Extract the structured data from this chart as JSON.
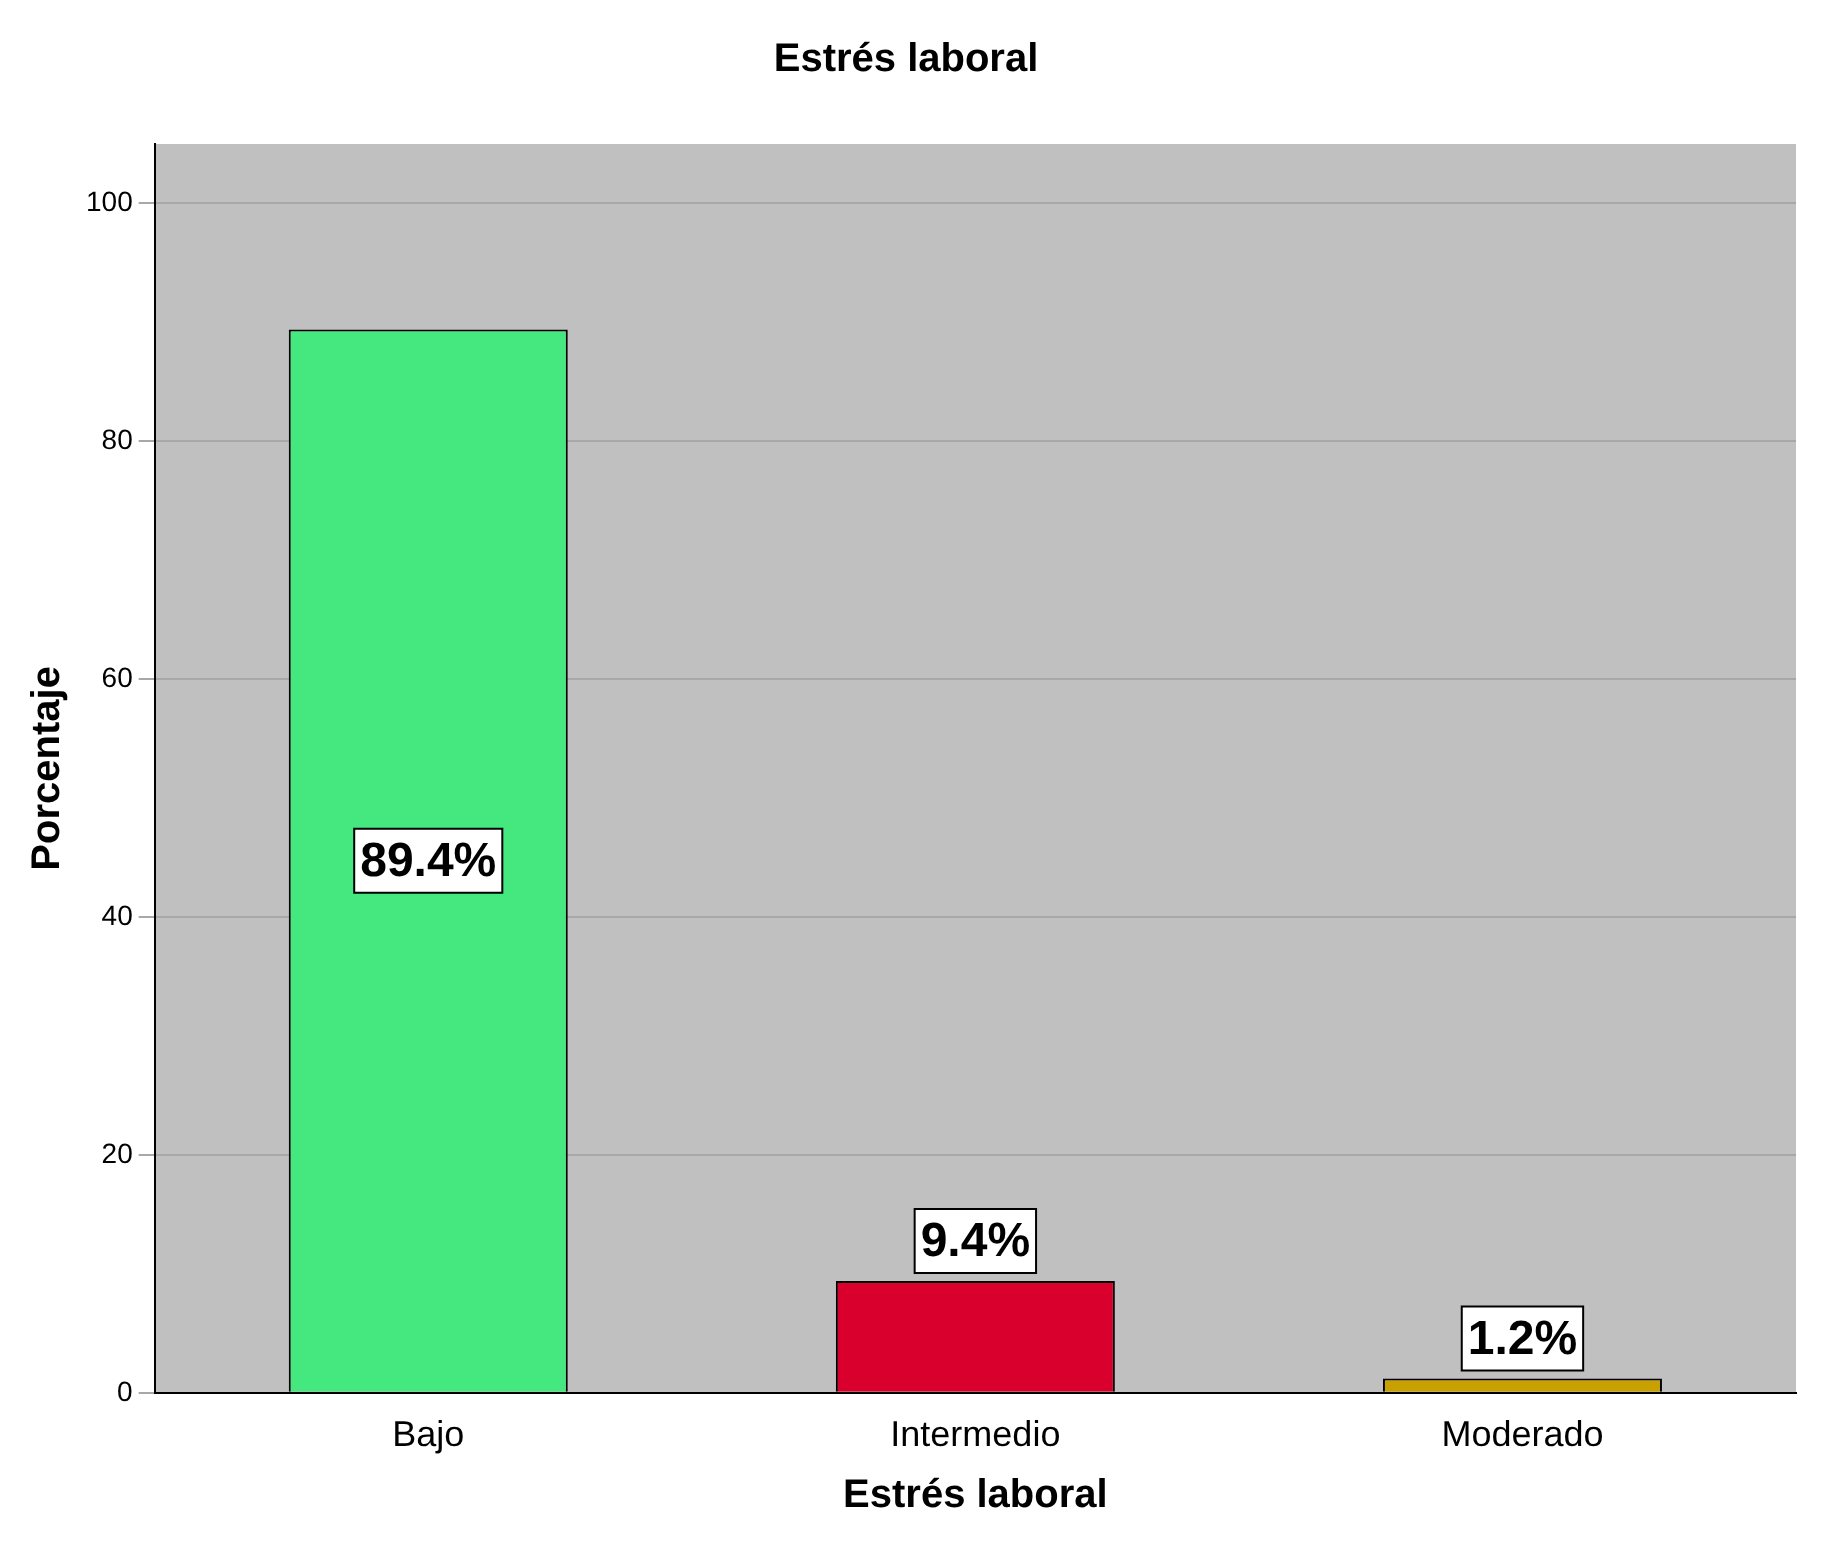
{
  "chart_data": {
    "type": "bar",
    "title": "Estrés laboral",
    "xlabel": "Estrés laboral",
    "ylabel": "Porcentaje",
    "categories": [
      "Bajo",
      "Intermedio",
      "Moderado"
    ],
    "values": [
      89.4,
      9.4,
      1.2
    ],
    "colors": [
      "#45e87f",
      "#d9002e",
      "#c8a000"
    ],
    "value_labels": [
      "89.4%",
      "9.4%",
      "1.2%"
    ],
    "ylim": [
      0,
      105
    ],
    "yticks": [
      0,
      20,
      40,
      60,
      80,
      100
    ],
    "grid": "y"
  }
}
